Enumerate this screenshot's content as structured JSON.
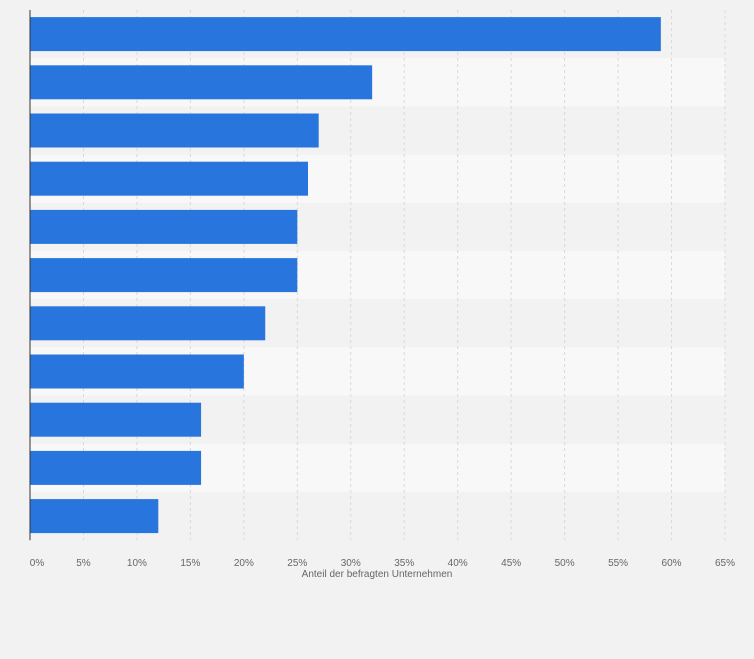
{
  "chart_data": {
    "type": "bar",
    "orientation": "horizontal",
    "categories": [
      "",
      "",
      "",
      "",
      "",
      "",
      "",
      "",
      "",
      "",
      ""
    ],
    "values": [
      59,
      32,
      27,
      26,
      25,
      25,
      22,
      20,
      16,
      16,
      12
    ],
    "value_unit": "%",
    "xlabel": "Anteil der befragten Unternehmen",
    "xlim": [
      0,
      65
    ],
    "xticks": [
      0,
      5,
      10,
      15,
      20,
      25,
      30,
      35,
      40,
      45,
      50,
      55,
      60,
      65
    ],
    "xtick_labels": [
      "0%",
      "5%",
      "10%",
      "15%",
      "20%",
      "25%",
      "30%",
      "35%",
      "40%",
      "45%",
      "50%",
      "55%",
      "60%",
      "65%"
    ],
    "grid": "vertical dashed",
    "bar_color": "#2876dd",
    "band_colors": [
      "#f2f2f2",
      "#f8f8f8"
    ]
  }
}
